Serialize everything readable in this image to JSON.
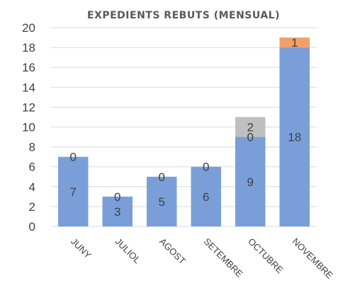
{
  "chart_data": {
    "type": "bar",
    "stacked": true,
    "title": "EXPEDIENTS REBUTS (MENSUAL)",
    "categories": [
      "JUNY",
      "JULIOL",
      "AGOST",
      "SETEMBRE",
      "OCTUBRE",
      "NOVEMBRE"
    ],
    "series": [
      {
        "values": [
          7,
          3,
          5,
          6,
          9,
          18
        ],
        "color": "#7a9fd8",
        "show_labels": [
          true,
          true,
          true,
          true,
          true,
          true
        ]
      },
      {
        "values": [
          0,
          0,
          0,
          0,
          0,
          1
        ],
        "color": "#f0a06a",
        "show_labels": [
          true,
          true,
          true,
          true,
          true,
          true
        ]
      },
      {
        "values": [
          0,
          0,
          0,
          0,
          2,
          0
        ],
        "color": "#bfbfbf",
        "show_labels": [
          false,
          false,
          false,
          false,
          true,
          false
        ]
      }
    ],
    "ylim": [
      0,
      20
    ],
    "yticks": [
      0,
      2,
      4,
      6,
      8,
      10,
      12,
      14,
      16,
      18,
      20
    ],
    "grid": true,
    "legend": "none"
  }
}
